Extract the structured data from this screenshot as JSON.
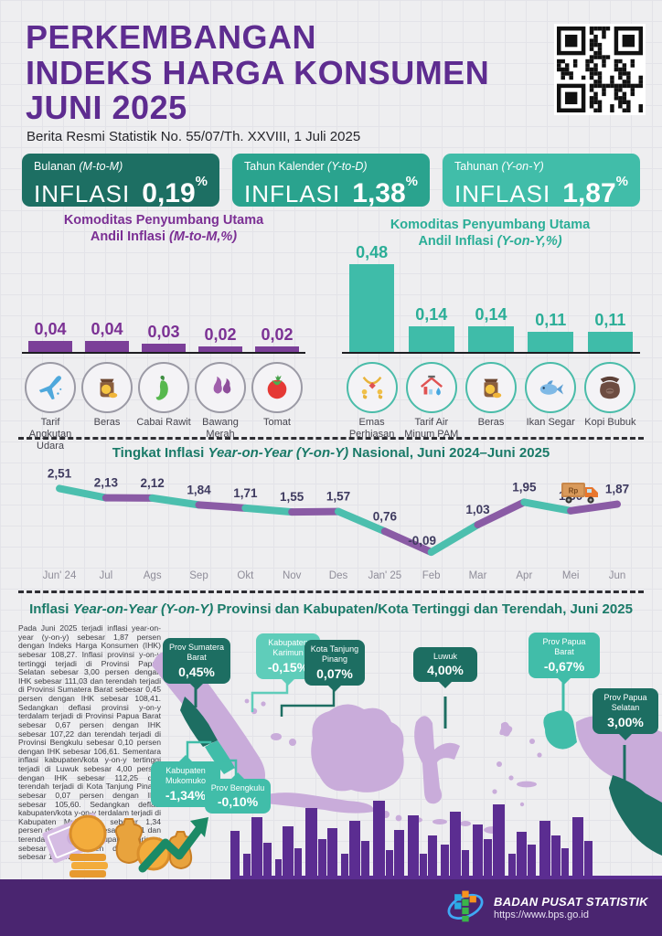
{
  "header": {
    "title_line1": "PERKEMBANGAN",
    "title_line2": "INDEKS HARGA KONSUMEN",
    "title_line3": "JUNI 2025",
    "subtitle": "Berita Resmi Statistik No. 55/07/Th. XXVIII, 1 Juli 2025",
    "qr_icon": "qr-code"
  },
  "stat_boxes": [
    {
      "label": "Bulanan ",
      "label_italic": "(M-to-M)",
      "metric": "INFLASI",
      "value": "0,19",
      "unit": "%",
      "color": "#1D6F63"
    },
    {
      "label": "Tahun Kalender ",
      "label_italic": "(Y-to-D)",
      "metric": "INFLASI",
      "value": "1,38",
      "unit": "%",
      "color": "#2AA38E"
    },
    {
      "label": "Tahunan ",
      "label_italic": "(Y-on-Y)",
      "metric": "INFLASI",
      "value": "1,87",
      "unit": "%",
      "color": "#41BDA9"
    }
  ],
  "chart_data": [
    {
      "type": "bar",
      "title_line1": "Komoditas Penyumbang Utama",
      "title_line2_pre": "Andil Inflasi ",
      "title_line2_italic": "(M-to-M,%)",
      "categories": [
        "Tarif Angkutan Udara",
        "Beras",
        "Cabai Rawit",
        "Bawang Merah",
        "Tomat"
      ],
      "values": [
        0.04,
        0.04,
        0.03,
        0.02,
        0.02
      ],
      "value_labels": [
        "0,04",
        "0,04",
        "0,03",
        "0,02",
        "0,02"
      ],
      "icons": [
        "airplane-icon",
        "rice-sack-icon",
        "chili-icon",
        "shallot-icon",
        "tomato-icon"
      ],
      "bar_color": "#7B3F98",
      "accent": "#7B3194",
      "icon_ring": "#9B9AA5",
      "ylim": [
        0,
        0.05
      ]
    },
    {
      "type": "bar",
      "title_line1": "Komoditas Penyumbang Utama",
      "title_line2_pre": "Andil Inflasi ",
      "title_line2_italic": "(Y-on-Y,%)",
      "categories": [
        "Emas Perhiasan",
        "Tarif Air Minum PAM",
        "Beras",
        "Ikan Segar",
        "Kopi Bubuk"
      ],
      "values": [
        0.48,
        0.14,
        0.14,
        0.11,
        0.11
      ],
      "value_labels": [
        "0,48",
        "0,14",
        "0,14",
        "0,11",
        "0,11"
      ],
      "icons": [
        "gold-jewelry-icon",
        "water-tap-icon",
        "rice-sack-icon",
        "fish-icon",
        "coffee-sack-icon"
      ],
      "bar_color": "#3FBCA9",
      "accent": "#2BAE97",
      "icon_ring": "#4ABCA9",
      "ylim": [
        0,
        0.5
      ]
    },
    {
      "type": "line",
      "title_pre": "Tingkat Inflasi ",
      "title_italic": "Year-on-Year (Y-on-Y)",
      "title_post": " Nasional, Juni 2024–Juni 2025",
      "x": [
        "Jun' 24",
        "Jul",
        "Ags",
        "Sep",
        "Okt",
        "Nov",
        "Des",
        "Jan' 25",
        "Feb",
        "Mar",
        "Apr",
        "Mei",
        "Jun"
      ],
      "values": [
        2.51,
        2.13,
        2.12,
        1.84,
        1.71,
        1.55,
        1.57,
        0.76,
        -0.09,
        1.03,
        1.95,
        1.6,
        1.87
      ],
      "value_labels": [
        "2,51",
        "2,13",
        "2,12",
        "1,84",
        "1,71",
        "1,55",
        "1,57",
        "0,76",
        "-0,09",
        "1,03",
        "1,95",
        "1,60",
        "1,87"
      ],
      "segment_colors": [
        "#4CBFAE",
        "#8A5BA5"
      ],
      "label_color": "#3E3A5F",
      "axis_label_color": "#8F8D99",
      "ylim": [
        -0.2,
        2.6
      ],
      "grid": false,
      "legend": "none",
      "truck_icon": "money-truck-icon"
    }
  ],
  "map_section": {
    "title_pre": "Inflasi ",
    "title_italic": "Year-on-Year (Y-on-Y)",
    "title_post": " Provinsi dan Kabupaten/Kota Tertinggi dan Terendah, Juni 2025",
    "paragraph": "Pada Juni 2025 terjadi inflasi year-on-year (y-on-y) sebesar 1,87 persen dengan Indeks Harga Konsumen (IHK) sebesar 108,27. Inflasi provinsi y-on-y tertinggi terjadi di Provinsi Papua Selatan sebesar 3,00 persen dengan IHK sebesar 111,03 dan terendah terjadi di Provinsi Sumatera Barat sebesar 0,45 persen dengan IHK sebesar 108,41. Sedangkan deflasi provinsi y-on-y terdalam terjadi di Provinsi Papua Barat sebesar 0,67 persen dengan IHK sebesar 107,22 dan terendah terjadi di Provinsi Bengkulu sebesar 0,10 persen dengan IHK sebesar 106,61. Sementara inflasi kabupaten/kota y-on-y tertinggi terjadi di Luwuk sebesar 4,00 persen dengan IHK sebesar 112,25 dan terendah terjadi di Kota Tanjung Pinang sebesar 0,07 persen dengan IHK sebesar 105,60. Sedangkan deflasi kabupaten/kota y-on-y terdalam terjadi di Kabupaten Mukomuko sebesar 1,34 persen dengan IHK sebesar 105,61 dan terendah terjadi di Kabupaten Karimun sebesar 0,15 persen dengan IHK sebesar 105,92.",
    "callouts": [
      {
        "name": "Prov Sumatera Barat",
        "value": "0,45%"
      },
      {
        "name": "Kabupaten Karimun",
        "value": "-0,15%"
      },
      {
        "name": "Kota Tanjung Pinang",
        "value": "0,07%"
      },
      {
        "name": "Luwuk",
        "value": "4,00%"
      },
      {
        "name": "Prov Papua Barat",
        "value": "-0,67%"
      },
      {
        "name": "Prov Papua Selatan",
        "value": "3,00%"
      },
      {
        "name": "Kabupaten Mukomuko",
        "value": "-1,34%"
      },
      {
        "name": "Prov Bengkulu",
        "value": "-0,10%"
      }
    ]
  },
  "footer": {
    "org": "BADAN PUSAT STATISTIK",
    "url": "https://www.bps.go.id",
    "logo_icon": "bps-logo"
  },
  "colors": {
    "title_purple": "#5E2C90",
    "box_dark_teal": "#1D6F63",
    "box_mid_teal": "#2AA38E",
    "box_light_teal": "#41BDA9",
    "line_teal": "#4CBFAE",
    "line_purple": "#8A5BA5",
    "map_lavender": "#C9ACDA",
    "callout_dark": "#1D6E62",
    "callout_teal": "#41BDA9",
    "callout_light": "#5FCDBA",
    "skyline_purple": "#5B2D91",
    "footer_purple": "#4A2570"
  }
}
